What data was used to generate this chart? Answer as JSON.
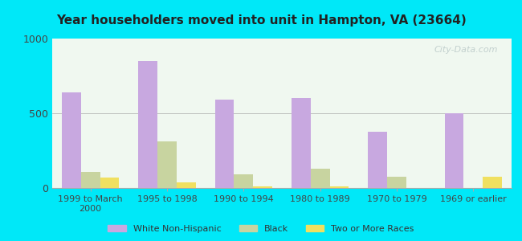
{
  "title": "Year householders moved into unit in Hampton, VA (23664)",
  "categories": [
    "1999 to March\n2000",
    "1995 to 1998",
    "1990 to 1994",
    "1980 to 1989",
    "1970 to 1979",
    "1969 or earlier"
  ],
  "white_non_hispanic": [
    640,
    850,
    590,
    600,
    375,
    500
  ],
  "black": [
    110,
    310,
    90,
    130,
    75,
    0
  ],
  "two_or_more": [
    70,
    35,
    10,
    10,
    0,
    75
  ],
  "white_color": "#c8a8e0",
  "black_color": "#c8d4a0",
  "two_color": "#f0e060",
  "background_outer": "#00e8f8",
  "background_inner_top": "#f0f8f0",
  "background_inner_bottom": "#e8f4e0",
  "ylim": [
    0,
    1000
  ],
  "yticks": [
    0,
    500,
    1000
  ],
  "watermark": "City-Data.com",
  "legend_labels": [
    "White Non-Hispanic",
    "Black",
    "Two or More Races"
  ],
  "bar_width": 0.25
}
